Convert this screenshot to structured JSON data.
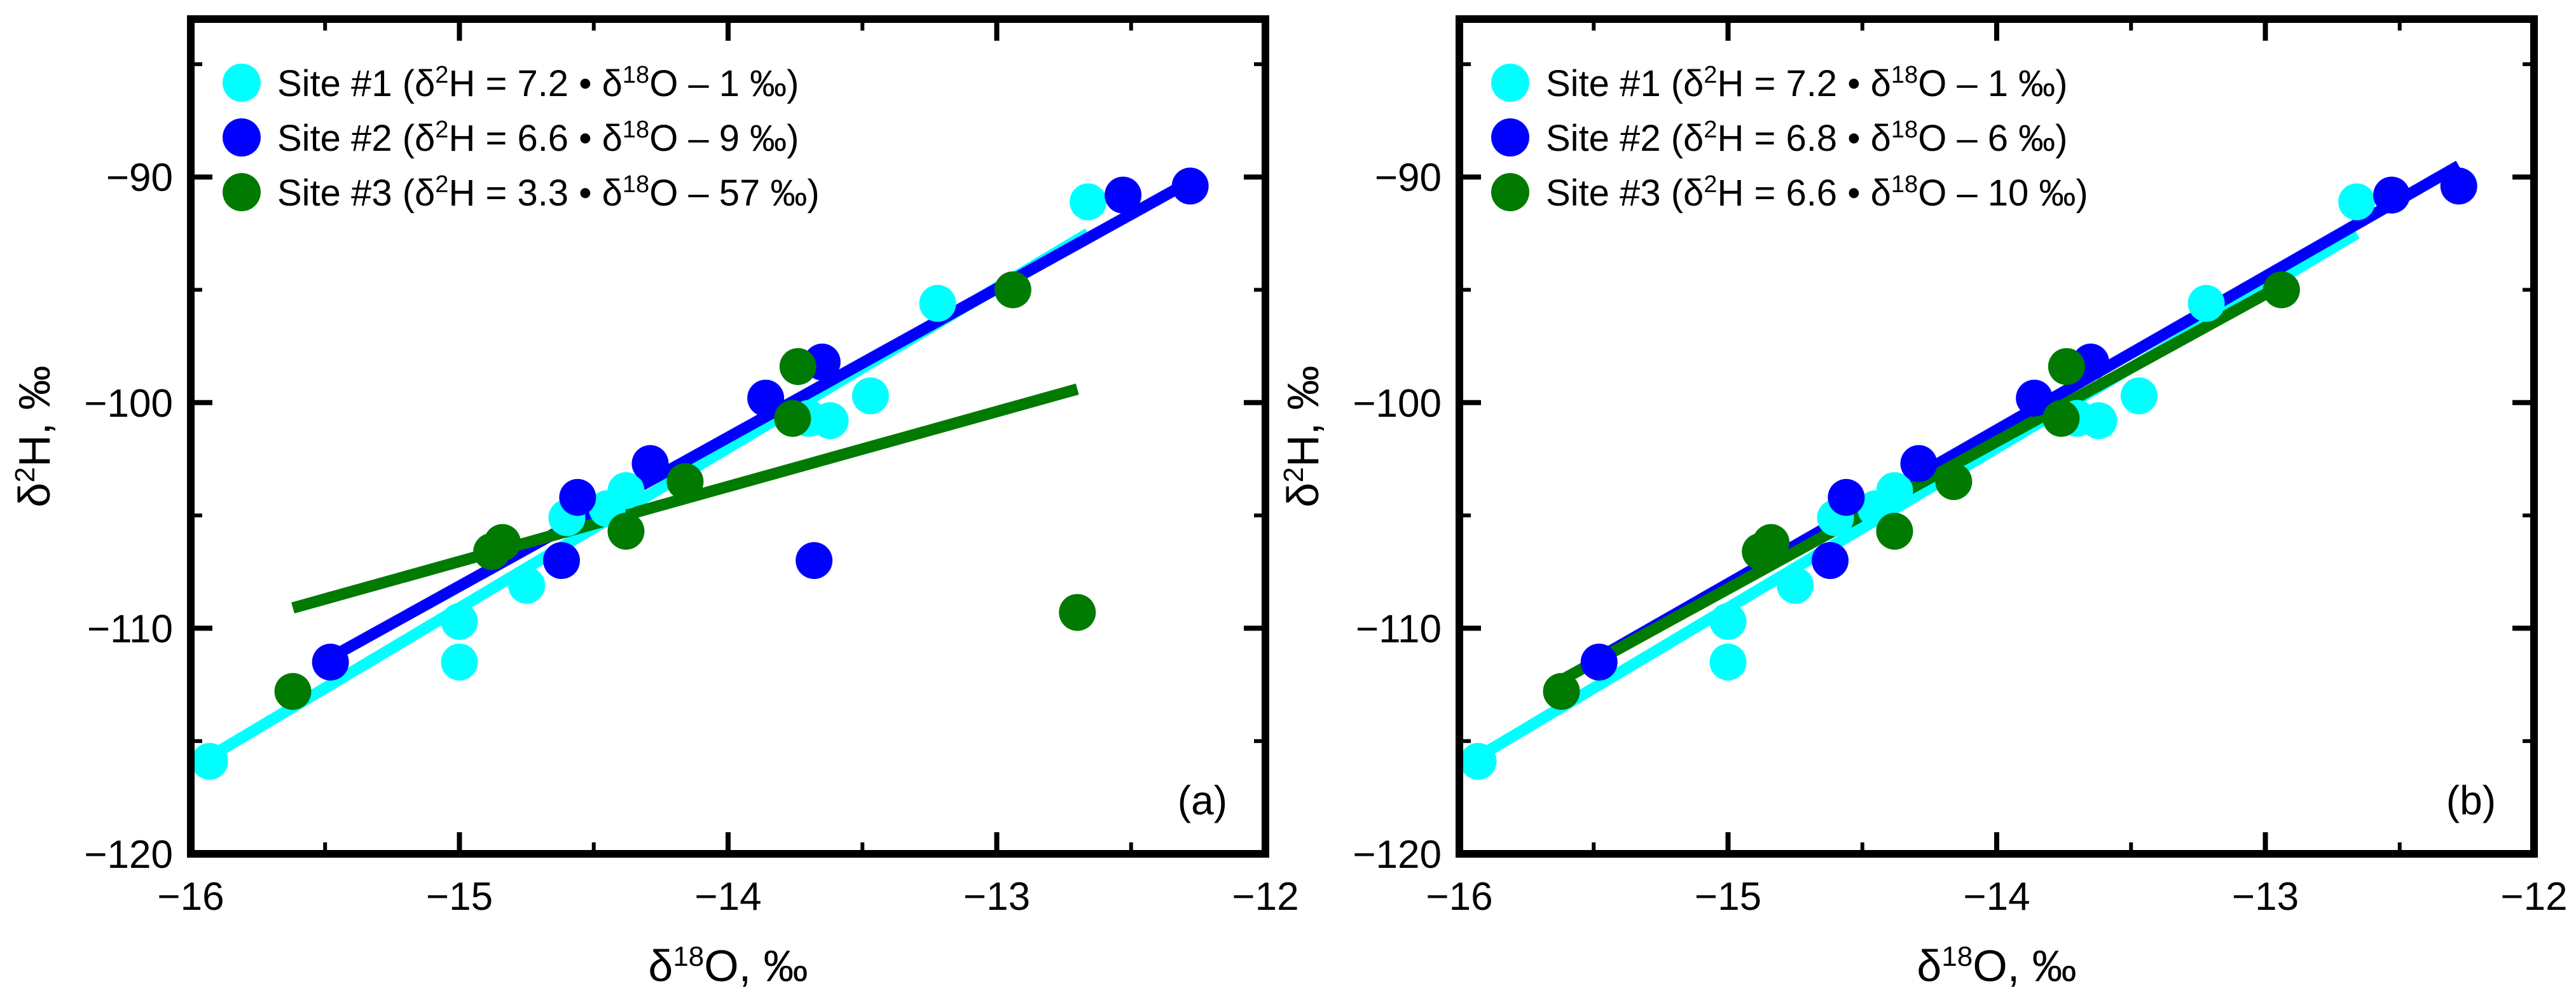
{
  "chart_data": [
    {
      "type": "scatter",
      "panel_label": "(a)",
      "xlabel": {
        "pre": "δ",
        "sup": "18",
        "post": "O, ‰"
      },
      "ylabel": {
        "pre": "δ",
        "sup": "2",
        "post": "H, ‰"
      },
      "xlim": [
        -16,
        -12
      ],
      "ylim": [
        -120,
        -83
      ],
      "xticks": [
        -16,
        -15,
        -14,
        -13,
        -12
      ],
      "yticks": [
        -120,
        -110,
        -100,
        -90
      ],
      "xtick_labels": [
        "−16",
        "−15",
        "−14",
        "−13",
        "−12"
      ],
      "ytick_labels": [
        "−120",
        "−110",
        "−100",
        "−90"
      ],
      "legend_position": "top-left",
      "series": [
        {
          "name": "Site #1",
          "color": "#00FFFF",
          "equation": {
            "a": "7.2",
            "b": "1"
          },
          "points": [
            [
              -15.93,
              -115.9
            ],
            [
              -15.0,
              -109.7
            ],
            [
              -15.0,
              -111.5
            ],
            [
              -14.75,
              -108.1
            ],
            [
              -14.6,
              -105.1
            ],
            [
              -14.45,
              -104.7
            ],
            [
              -14.38,
              -103.9
            ],
            [
              -13.7,
              -100.7
            ],
            [
              -13.62,
              -100.8
            ],
            [
              -13.47,
              -99.7
            ],
            [
              -13.22,
              -95.6
            ],
            [
              -12.66,
              -91.1
            ]
          ],
          "fit": {
            "x": [
              -15.93,
              -12.66
            ],
            "y": [
              -115.7,
              -92.5
            ]
          }
        },
        {
          "name": "Site #2",
          "color": "#0000FF",
          "equation": {
            "a": "6.6",
            "b": "9"
          },
          "points": [
            [
              -15.48,
              -111.5
            ],
            [
              -14.62,
              -107.0
            ],
            [
              -14.56,
              -104.2
            ],
            [
              -14.29,
              -102.7
            ],
            [
              -13.86,
              -99.8
            ],
            [
              -13.68,
              -107.0
            ],
            [
              -13.65,
              -98.2
            ],
            [
              -12.53,
              -90.8
            ],
            [
              -12.28,
              -90.4
            ]
          ],
          "fit": {
            "x": [
              -15.48,
              -12.28
            ],
            "y": [
              -111.3,
              -90.2
            ]
          }
        },
        {
          "name": "Site #3",
          "color": "#007A00",
          "equation": {
            "a": "3.3",
            "b": "57"
          },
          "points": [
            [
              -15.62,
              -112.8
            ],
            [
              -14.88,
              -106.6
            ],
            [
              -14.84,
              -106.2
            ],
            [
              -14.38,
              -105.7
            ],
            [
              -14.16,
              -103.5
            ],
            [
              -13.76,
              -100.7
            ],
            [
              -13.74,
              -98.4
            ],
            [
              -12.94,
              -95.0
            ],
            [
              -12.7,
              -109.3
            ]
          ],
          "fit": {
            "x": [
              -15.62,
              -12.7
            ],
            "y": [
              -109.1,
              -99.4
            ]
          }
        }
      ]
    },
    {
      "type": "scatter",
      "panel_label": "(b)",
      "xlabel": {
        "pre": "δ",
        "sup": "18",
        "post": "O, ‰"
      },
      "ylabel": {
        "pre": "δ",
        "sup": "2",
        "post": "H, ‰"
      },
      "xlim": [
        -16,
        -12
      ],
      "ylim": [
        -120,
        -83
      ],
      "xticks": [
        -16,
        -15,
        -14,
        -13,
        -12
      ],
      "yticks": [
        -120,
        -110,
        -100,
        -90
      ],
      "xtick_labels": [
        "−16",
        "−15",
        "−14",
        "−13",
        "−12"
      ],
      "ytick_labels": [
        "−120",
        "−110",
        "−100",
        "−90"
      ],
      "legend_position": "top-left",
      "series": [
        {
          "name": "Site #1",
          "color": "#00FFFF",
          "equation": {
            "a": "7.2",
            "b": "1"
          },
          "points": [
            [
              -15.93,
              -115.9
            ],
            [
              -15.0,
              -109.7
            ],
            [
              -15.0,
              -111.5
            ],
            [
              -14.75,
              -108.1
            ],
            [
              -14.6,
              -105.1
            ],
            [
              -14.45,
              -104.7
            ],
            [
              -14.38,
              -103.9
            ],
            [
              -13.7,
              -100.7
            ],
            [
              -13.62,
              -100.8
            ],
            [
              -13.47,
              -99.7
            ],
            [
              -13.22,
              -95.6
            ],
            [
              -12.66,
              -91.1
            ]
          ],
          "fit": {
            "x": [
              -15.93,
              -12.66
            ],
            "y": [
              -115.7,
              -92.5
            ]
          }
        },
        {
          "name": "Site #2",
          "color": "#0000FF",
          "equation": {
            "a": "6.8",
            "b": "6"
          },
          "points": [
            [
              -15.48,
              -111.5
            ],
            [
              -14.62,
              -107.0
            ],
            [
              -14.56,
              -104.2
            ],
            [
              -14.29,
              -102.7
            ],
            [
              -13.86,
              -99.8
            ],
            [
              -13.65,
              -98.2
            ],
            [
              -12.53,
              -90.8
            ],
            [
              -12.28,
              -90.4
            ]
          ],
          "fit": {
            "x": [
              -15.48,
              -12.28
            ],
            "y": [
              -111.3,
              -89.5
            ]
          }
        },
        {
          "name": "Site #3",
          "color": "#007A00",
          "equation": {
            "a": "6.6",
            "b": "10"
          },
          "points": [
            [
              -15.62,
              -112.8
            ],
            [
              -14.88,
              -106.6
            ],
            [
              -14.84,
              -106.2
            ],
            [
              -14.38,
              -105.7
            ],
            [
              -14.16,
              -103.5
            ],
            [
              -13.76,
              -100.7
            ],
            [
              -13.74,
              -98.4
            ],
            [
              -12.94,
              -95.0
            ]
          ],
          "fit": {
            "x": [
              -15.62,
              -12.94
            ],
            "y": [
              -112.3,
              -94.8
            ]
          }
        }
      ]
    }
  ]
}
